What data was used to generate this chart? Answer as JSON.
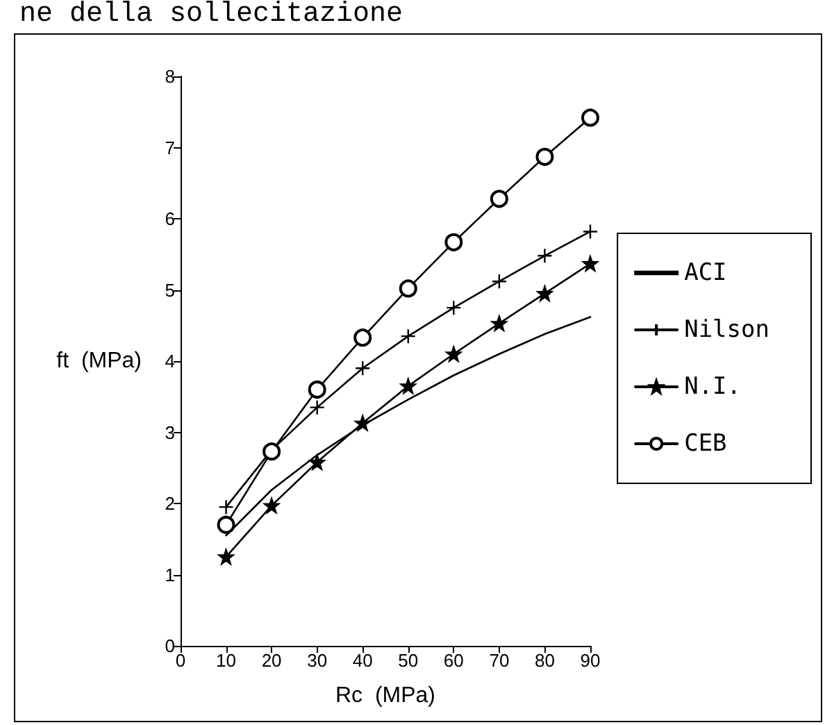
{
  "chart_data": {
    "type": "line",
    "xlabel": "Rc  (MPa)",
    "ylabel": "ft  (MPa)",
    "annotations": [
      "ne della sollecitazione"
    ],
    "x": [
      10,
      20,
      30,
      40,
      50,
      60,
      70,
      80,
      90
    ],
    "series": [
      {
        "name": "ACI",
        "color": "#000000",
        "marker": "none",
        "values": [
          1.55,
          2.19,
          2.68,
          3.1,
          3.46,
          3.8,
          4.1,
          4.38,
          4.62
        ]
      },
      {
        "name": "Nilson",
        "color": "#000000",
        "marker": "cross",
        "values": [
          1.95,
          2.75,
          3.35,
          3.9,
          4.35,
          4.75,
          5.12,
          5.48,
          5.82
        ]
      },
      {
        "name": "N.I.",
        "color": "#000000",
        "marker": "star",
        "values": [
          1.25,
          1.97,
          2.58,
          3.13,
          3.65,
          4.1,
          4.53,
          4.95,
          5.37
        ]
      },
      {
        "name": "CEB",
        "color": "#000000",
        "marker": "circle",
        "values": [
          1.7,
          2.73,
          3.6,
          4.33,
          5.02,
          5.67,
          6.28,
          6.87,
          7.42
        ]
      }
    ],
    "xlim": [
      0,
      90
    ],
    "xticks": [
      0,
      10,
      20,
      30,
      40,
      50,
      60,
      70,
      80,
      90
    ],
    "ylim": [
      0,
      8
    ],
    "yticks": [
      0,
      1,
      2,
      3,
      4,
      5,
      6,
      7,
      8
    ],
    "grid": false,
    "legend": "right",
    "line_style": "solid"
  }
}
